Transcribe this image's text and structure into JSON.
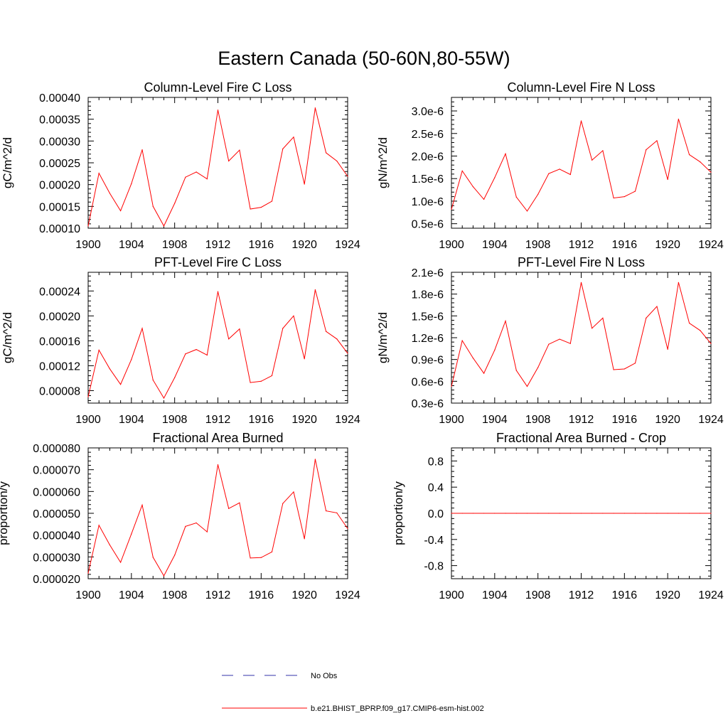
{
  "figure": {
    "title": "Eastern Canada (50-60N,80-55W)",
    "colors": {
      "model": "#ff0000",
      "obs": "#3333aa",
      "axis": "#000000"
    }
  },
  "legend": {
    "entries": [
      {
        "label": "No Obs",
        "style": "dashed",
        "color": "#3333aa"
      },
      {
        "label": "b.e21.BHIST_BPRP.f09_g17.CMIP6-esm-hist.002",
        "style": "solid",
        "color": "#ff0000"
      }
    ]
  },
  "chart_data": [
    {
      "type": "line",
      "title": "Column-Level Fire C Loss",
      "ylabel": "gC/m^2/d",
      "xlim": [
        1900,
        1924
      ],
      "ylim": [
        0.0001,
        0.0004
      ],
      "xticks": [
        1900,
        1904,
        1908,
        1912,
        1916,
        1920,
        1924
      ],
      "xticklabels": [
        "1900",
        "1904",
        "1908",
        "1912",
        "1916",
        "1920",
        "1924"
      ],
      "yticks": [
        0.0001,
        0.00015,
        0.0002,
        0.00025,
        0.0003,
        0.00035,
        0.0004
      ],
      "yticklabels": [
        "0.00010",
        "0.00015",
        "0.00020",
        "0.00025",
        "0.00030",
        "0.00035",
        "0.00040"
      ],
      "x": [
        1900,
        1901,
        1902,
        1903,
        1904,
        1905,
        1906,
        1907,
        1908,
        1909,
        1910,
        1911,
        1912,
        1913,
        1914,
        1915,
        1916,
        1917,
        1918,
        1919,
        1920,
        1921,
        1922,
        1923,
        1924
      ],
      "series": [
        {
          "name": "b.e21.BHIST_BPRP.f09_g17.CMIP6-esm-hist.002",
          "values": [
            0.000105,
            0.000226,
            0.00018,
            0.00014,
            0.000202,
            0.00028,
            0.00015,
            0.000105,
            0.000157,
            0.000217,
            0.000229,
            0.000213,
            0.000371,
            0.000254,
            0.000279,
            0.000144,
            0.000148,
            0.000162,
            0.000282,
            0.000309,
            0.000201,
            0.000376,
            0.000273,
            0.000254,
            0.000219
          ]
        }
      ]
    },
    {
      "type": "line",
      "title": "Column-Level Fire N Loss",
      "ylabel": "gN/m^2/d",
      "xlim": [
        1900,
        1924
      ],
      "ylim": [
        4e-07,
        3.3e-06
      ],
      "xticks": [
        1900,
        1904,
        1908,
        1912,
        1916,
        1920,
        1924
      ],
      "xticklabels": [
        "1900",
        "1904",
        "1908",
        "1912",
        "1916",
        "1920",
        "1924"
      ],
      "yticks": [
        5e-07,
        1e-06,
        1.5e-06,
        2e-06,
        2.5e-06,
        3e-06
      ],
      "yticklabels": [
        "0.5e-6",
        "1.0e-6",
        "1.5e-6",
        "2.0e-6",
        "2.5e-6",
        "3.0e-6"
      ],
      "x": [
        1900,
        1901,
        1902,
        1903,
        1904,
        1905,
        1906,
        1907,
        1908,
        1909,
        1910,
        1911,
        1912,
        1913,
        1914,
        1915,
        1916,
        1917,
        1918,
        1919,
        1920,
        1921,
        1922,
        1923,
        1924
      ],
      "series": [
        {
          "name": "b.e21.BHIST_BPRP.f09_g17.CMIP6-esm-hist.002",
          "values": [
            8.2e-07,
            1.67e-06,
            1.32e-06,
            1.04e-06,
            1.52e-06,
            2.05e-06,
            1.09e-06,
            7.8e-07,
            1.15e-06,
            1.61e-06,
            1.71e-06,
            1.59e-06,
            2.78e-06,
            1.91e-06,
            2.12e-06,
            1.07e-06,
            1.1e-06,
            1.22e-06,
            2.14e-06,
            2.34e-06,
            1.48e-06,
            2.82e-06,
            2.03e-06,
            1.87e-06,
            1.64e-06
          ]
        }
      ]
    },
    {
      "type": "line",
      "title": "PFT-Level Fire C Loss",
      "ylabel": "gC/m^2/d",
      "xlim": [
        1900,
        1924
      ],
      "ylim": [
        6e-05,
        0.00027
      ],
      "xticks": [
        1900,
        1904,
        1908,
        1912,
        1916,
        1920,
        1924
      ],
      "xticklabels": [
        "1900",
        "1904",
        "1908",
        "1912",
        "1916",
        "1920",
        "1924"
      ],
      "yticks": [
        8e-05,
        0.00012,
        0.00016,
        0.0002,
        0.00024
      ],
      "yticklabels": [
        "0.00008",
        "0.00012",
        "0.00016",
        "0.00020",
        "0.00024"
      ],
      "x": [
        1900,
        1901,
        1902,
        1903,
        1904,
        1905,
        1906,
        1907,
        1908,
        1909,
        1910,
        1911,
        1912,
        1913,
        1914,
        1915,
        1916,
        1917,
        1918,
        1919,
        1920,
        1921,
        1922,
        1923,
        1924
      ],
      "series": [
        {
          "name": "b.e21.BHIST_BPRP.f09_g17.CMIP6-esm-hist.002",
          "values": [
            7e-05,
            0.000145,
            0.000115,
            9e-05,
            0.00013,
            0.00018,
            9.7e-05,
            6.8e-05,
            0.000101,
            0.000139,
            0.000146,
            0.000137,
            0.000239,
            0.000163,
            0.000179,
            9.3e-05,
            9.5e-05,
            0.000104,
            0.00018,
            0.0002,
            0.000131,
            0.000242,
            0.000175,
            0.000163,
            0.00014
          ]
        }
      ]
    },
    {
      "type": "line",
      "title": "PFT-Level Fire N Loss",
      "ylabel": "gN/m^2/d",
      "xlim": [
        1900,
        1924
      ],
      "ylim": [
        3e-07,
        2.1e-06
      ],
      "xticks": [
        1900,
        1904,
        1908,
        1912,
        1916,
        1920,
        1924
      ],
      "xticklabels": [
        "1900",
        "1904",
        "1908",
        "1912",
        "1916",
        "1920",
        "1924"
      ],
      "yticks": [
        3e-07,
        6e-07,
        9e-07,
        1.2e-06,
        1.5e-06,
        1.8e-06,
        2.1e-06
      ],
      "yticklabels": [
        "0.3e-6",
        "0.6e-6",
        "0.9e-6",
        "1.2e-6",
        "1.5e-6",
        "1.8e-6",
        "2.1e-6"
      ],
      "x": [
        1900,
        1901,
        1902,
        1903,
        1904,
        1905,
        1906,
        1907,
        1908,
        1909,
        1910,
        1911,
        1912,
        1913,
        1914,
        1915,
        1916,
        1917,
        1918,
        1919,
        1920,
        1921,
        1922,
        1923,
        1924
      ],
      "series": [
        {
          "name": "b.e21.BHIST_BPRP.f09_g17.CMIP6-esm-hist.002",
          "values": [
            5.3e-07,
            1.16e-06,
            9.2e-07,
            7.1e-07,
            1.03e-06,
            1.43e-06,
            7.5e-07,
            5.3e-07,
            7.9e-07,
            1.11e-06,
            1.18e-06,
            1.12e-06,
            1.96e-06,
            1.33e-06,
            1.47e-06,
            7.6e-07,
            7.7e-07,
            8.5e-07,
            1.47e-06,
            1.63e-06,
            1.04e-06,
            1.96e-06,
            1.4e-06,
            1.3e-06,
            1.12e-06
          ]
        }
      ]
    },
    {
      "type": "line",
      "title": "Fractional Area Burned",
      "ylabel": "proportion/y",
      "xlim": [
        1900,
        1924
      ],
      "ylim": [
        2e-05,
        8e-05
      ],
      "xticks": [
        1900,
        1904,
        1908,
        1912,
        1916,
        1920,
        1924
      ],
      "xticklabels": [
        "1900",
        "1904",
        "1908",
        "1912",
        "1916",
        "1920",
        "1924"
      ],
      "yticks": [
        2e-05,
        3e-05,
        4e-05,
        5e-05,
        6e-05,
        7e-05,
        8e-05
      ],
      "yticklabels": [
        "0.000020",
        "0.000030",
        "0.000040",
        "0.000050",
        "0.000060",
        "0.000070",
        "0.000080"
      ],
      "x": [
        1900,
        1901,
        1902,
        1903,
        1904,
        1905,
        1906,
        1907,
        1908,
        1909,
        1910,
        1911,
        1912,
        1913,
        1914,
        1915,
        1916,
        1917,
        1918,
        1919,
        1920,
        1921,
        1922,
        1923,
        1924
      ],
      "series": [
        {
          "name": "b.e21.BHIST_BPRP.f09_g17.CMIP6-esm-hist.002",
          "values": [
            2.25e-05,
            4.45e-05,
            3.55e-05,
            2.75e-05,
            4.05e-05,
            5.38e-05,
            2.98e-05,
            2.13e-05,
            3.08e-05,
            4.4e-05,
            4.56e-05,
            4.15e-05,
            7.23e-05,
            5.22e-05,
            5.48e-05,
            2.95e-05,
            2.97e-05,
            3.23e-05,
            5.45e-05,
            5.98e-05,
            3.83e-05,
            7.48e-05,
            5.11e-05,
            5.02e-05,
            4.3e-05
          ]
        }
      ]
    },
    {
      "type": "line",
      "title": "Fractional Area Burned - Crop",
      "ylabel": "proportion/y",
      "xlim": [
        1900,
        1924
      ],
      "ylim": [
        -1,
        1
      ],
      "xticks": [
        1900,
        1904,
        1908,
        1912,
        1916,
        1920,
        1924
      ],
      "xticklabels": [
        "1900",
        "1904",
        "1908",
        "1912",
        "1916",
        "1920",
        "1924"
      ],
      "yticks": [
        -0.8,
        -0.4,
        0,
        0.4,
        0.8
      ],
      "yticklabels": [
        "-0.8",
        "-0.4",
        "0.0",
        "0.4",
        "0.8"
      ],
      "x": [
        1900,
        1901,
        1902,
        1903,
        1904,
        1905,
        1906,
        1907,
        1908,
        1909,
        1910,
        1911,
        1912,
        1913,
        1914,
        1915,
        1916,
        1917,
        1918,
        1919,
        1920,
        1921,
        1922,
        1923,
        1924
      ],
      "series": [
        {
          "name": "b.e21.BHIST_BPRP.f09_g17.CMIP6-esm-hist.002",
          "values": [
            0,
            0,
            0,
            0,
            0,
            0,
            0,
            0,
            0,
            0,
            0,
            0,
            0,
            0,
            0,
            0,
            0,
            0,
            0,
            0,
            0,
            0,
            0,
            0,
            0
          ]
        }
      ]
    }
  ]
}
